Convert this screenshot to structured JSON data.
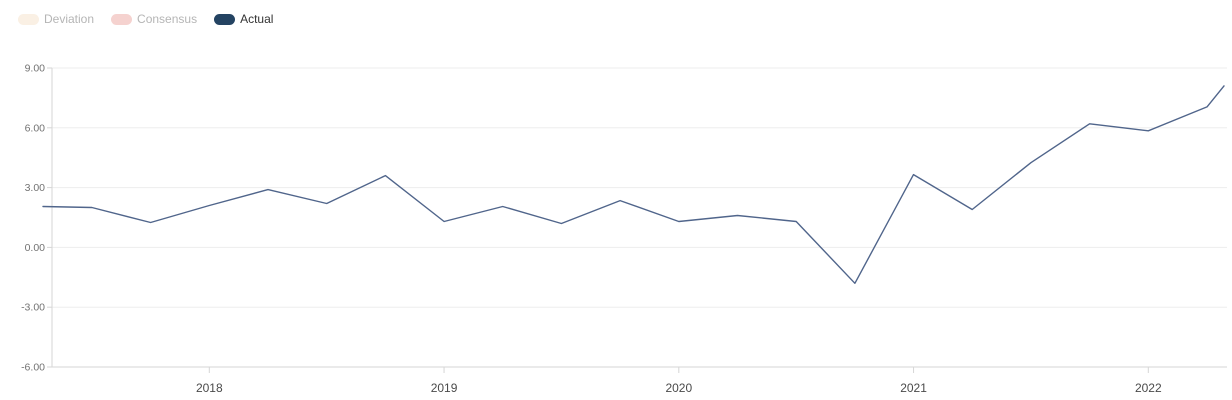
{
  "legend": {
    "items": [
      {
        "label": "Deviation",
        "swatch_color": "#faf0e4",
        "label_color": "#b5b5b5",
        "active": false
      },
      {
        "label": "Consensus",
        "swatch_color": "#f5d2cf",
        "label_color": "#b5b5b5",
        "active": false
      },
      {
        "label": "Actual",
        "swatch_color": "#244362",
        "label_color": "#333333",
        "active": true
      }
    ]
  },
  "chart_data": {
    "type": "line",
    "title": "",
    "xlabel": "",
    "ylabel": "",
    "x": [
      "2017 Q2",
      "2017 Q3",
      "2017 Q4",
      "2018 Q1",
      "2018 Q2",
      "2018 Q3",
      "2018 Q4",
      "2019 Q1",
      "2019 Q2",
      "2019 Q3",
      "2019 Q4",
      "2020 Q1",
      "2020 Q2",
      "2020 Q3",
      "2020 Q4",
      "2021 Q1",
      "2021 Q2",
      "2021 Q3",
      "2021 Q4",
      "2022 Q1",
      "2022 Q2",
      "2022 Q3"
    ],
    "series": [
      {
        "name": "Actual",
        "color": "#50658b",
        "values": [
          2.05,
          2.0,
          1.25,
          2.1,
          2.9,
          2.2,
          3.6,
          1.3,
          2.05,
          1.2,
          2.35,
          1.3,
          1.6,
          1.3,
          -1.8,
          3.65,
          1.9,
          4.25,
          6.2,
          5.85,
          7.05,
          8.1
        ]
      }
    ],
    "hidden_series": [
      "Deviation",
      "Consensus"
    ],
    "x_tick_labels": [
      "2018",
      "2019",
      "2020",
      "2021",
      "2022"
    ],
    "y_tick_labels": [
      "9.00",
      "6.00",
      "3.00",
      "0.00",
      "-3.00",
      "-6.00"
    ],
    "y_tick_values": [
      9,
      6,
      3,
      0,
      -3,
      -6
    ],
    "ylim": [
      -6,
      9
    ],
    "grid": true,
    "legend_position": "top-left"
  },
  "colors": {
    "background": "#ffffff",
    "gridline": "#ededed",
    "axis_line": "#d6d6d6",
    "y_label": "#737373",
    "x_label": "#4a4a4a"
  }
}
